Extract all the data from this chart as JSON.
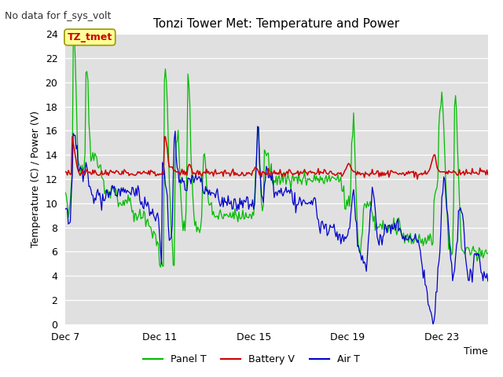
{
  "title": "Tonzi Tower Met: Temperature and Power",
  "top_left_note": "No data for f_sys_volt",
  "xlabel": "Time",
  "ylabel": "Temperature (C) / Power (V)",
  "ylim": [
    0,
    24
  ],
  "yticks": [
    0,
    2,
    4,
    6,
    8,
    10,
    12,
    14,
    16,
    18,
    20,
    22,
    24
  ],
  "xtick_labels": [
    "Dec 7",
    "Dec 11",
    "Dec 15",
    "Dec 19",
    "Dec 23"
  ],
  "xtick_positions": [
    0,
    96,
    192,
    288,
    384
  ],
  "total_points": 432,
  "legend": [
    {
      "label": "Panel T",
      "color": "#00bb00"
    },
    {
      "label": "Battery V",
      "color": "#cc0000"
    },
    {
      "label": "Air T",
      "color": "#0000cc"
    }
  ],
  "annotation_label": "TZ_tmet",
  "annotation_color": "#cc0000",
  "annotation_bg": "#ffff99",
  "fig_bg_color": "#ffffff",
  "plot_bg": "#e0e0e0",
  "grid_color": "#ffffff",
  "panel_color": "#00bb00",
  "battery_color": "#cc0000",
  "air_color": "#0000cc",
  "title_fontsize": 11,
  "axis_fontsize": 9,
  "note_fontsize": 9
}
